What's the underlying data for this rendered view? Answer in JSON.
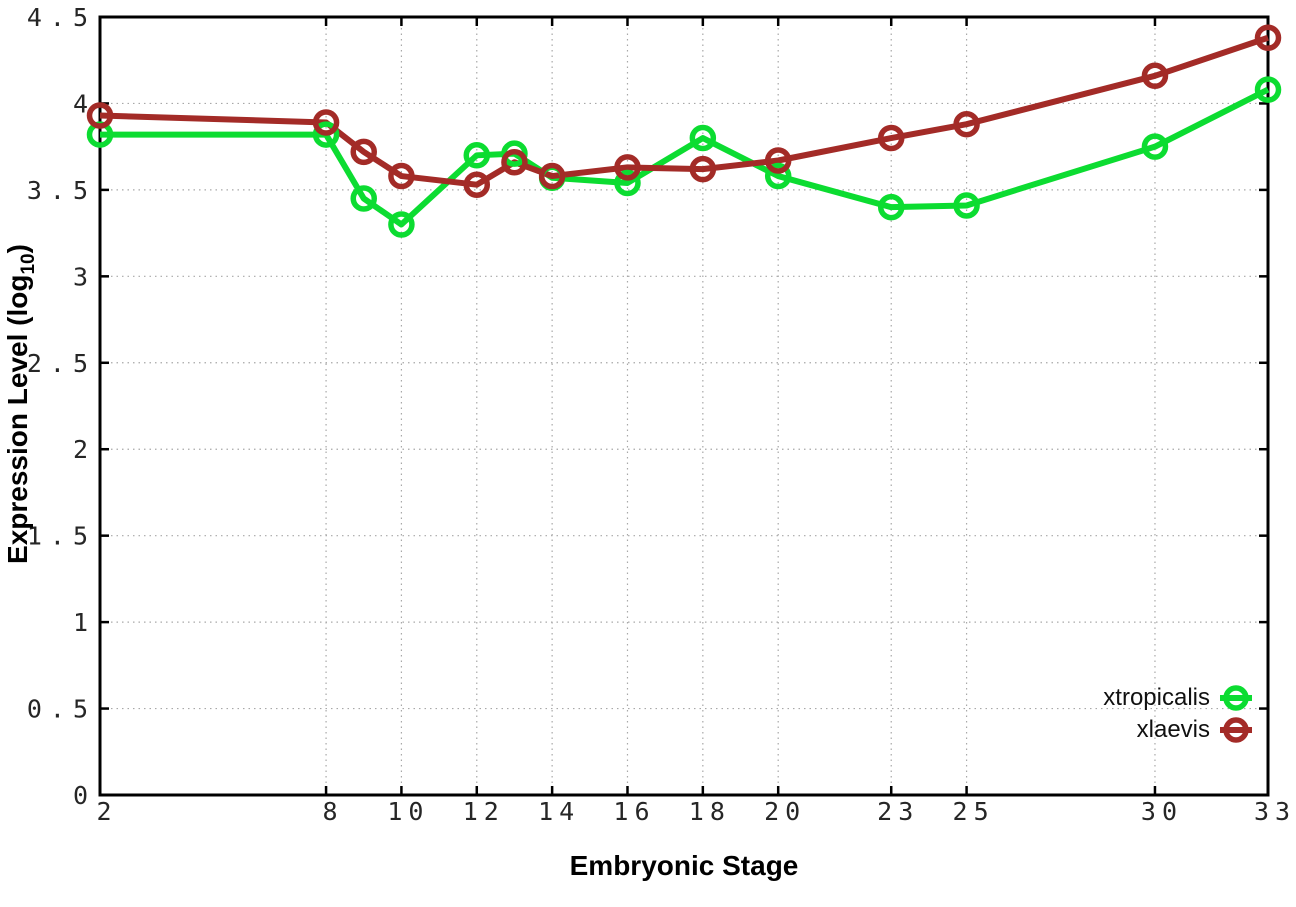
{
  "figure": {
    "background": "#ffffff",
    "xlabel": "Embryonic Stage",
    "ylabel": {
      "main": "Expression Level (log",
      "sub": "10",
      "suffix": ")"
    }
  },
  "chart_data": {
    "type": "line",
    "title": "",
    "xlabel": "Embryonic Stage",
    "ylabel": "Expression Level (log10)",
    "x": [
      2,
      8,
      9,
      10,
      12,
      13,
      14,
      16,
      18,
      20,
      23,
      25,
      30,
      33
    ],
    "series": [
      {
        "name": "xtropicalis",
        "color": "#0cdc31",
        "values": [
          3.82,
          3.82,
          3.45,
          3.3,
          3.7,
          3.71,
          3.57,
          3.54,
          3.8,
          3.58,
          3.4,
          3.41,
          3.75,
          4.08
        ]
      },
      {
        "name": "xlaevis",
        "color": "#a32b27",
        "values": [
          3.93,
          3.89,
          3.72,
          3.58,
          3.53,
          3.66,
          3.58,
          3.63,
          3.62,
          3.67,
          3.8,
          3.88,
          4.16,
          4.38
        ]
      }
    ],
    "xlim": [
      2,
      33
    ],
    "ylim": [
      0,
      4.5
    ],
    "x_ticks": {
      "values": [
        2,
        8,
        10,
        12,
        14,
        16,
        18,
        20,
        23,
        25,
        30,
        33
      ],
      "labels": [
        "2",
        "8",
        "10",
        "12",
        "14",
        "16",
        "18",
        "20",
        "23",
        "25",
        "30",
        "33"
      ]
    },
    "y_ticks": {
      "values": [
        0,
        0.5,
        1,
        1.5,
        2,
        2.5,
        3,
        3.5,
        4,
        4.5
      ],
      "labels": [
        "0",
        "0.5",
        "1",
        "1.5",
        "2",
        "2.5",
        "3",
        "3.5",
        "4",
        "4.5"
      ]
    },
    "grid": true,
    "grid_color": "#a8a8a8",
    "border_color": "#000000",
    "legend_position": "bottom-right"
  }
}
